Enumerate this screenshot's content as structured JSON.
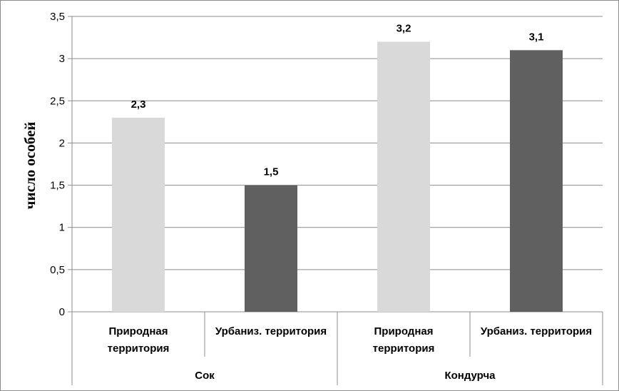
{
  "chart_data": {
    "type": "bar",
    "ylabel": "число особей",
    "ylim": [
      0,
      3.5
    ],
    "yticks": [
      "0",
      "0,5",
      "1",
      "1,5",
      "2",
      "2,5",
      "3",
      "3,5"
    ],
    "grid": true,
    "groups": [
      {
        "name": "Сок",
        "bars": [
          {
            "label": [
              "Природная",
              "территория"
            ],
            "value": 2.3,
            "display": "2,3",
            "color": "#d9d9d9"
          },
          {
            "label": [
              "Урбаниз. территория"
            ],
            "value": 1.5,
            "display": "1,5",
            "color": "#606060"
          }
        ]
      },
      {
        "name": "Кондурча",
        "bars": [
          {
            "label": [
              "Природная",
              "территория"
            ],
            "value": 3.2,
            "display": "3,2",
            "color": "#d9d9d9"
          },
          {
            "label": [
              "Урбаниз. территория"
            ],
            "value": 3.1,
            "display": "3,1",
            "color": "#606060"
          }
        ]
      }
    ]
  }
}
